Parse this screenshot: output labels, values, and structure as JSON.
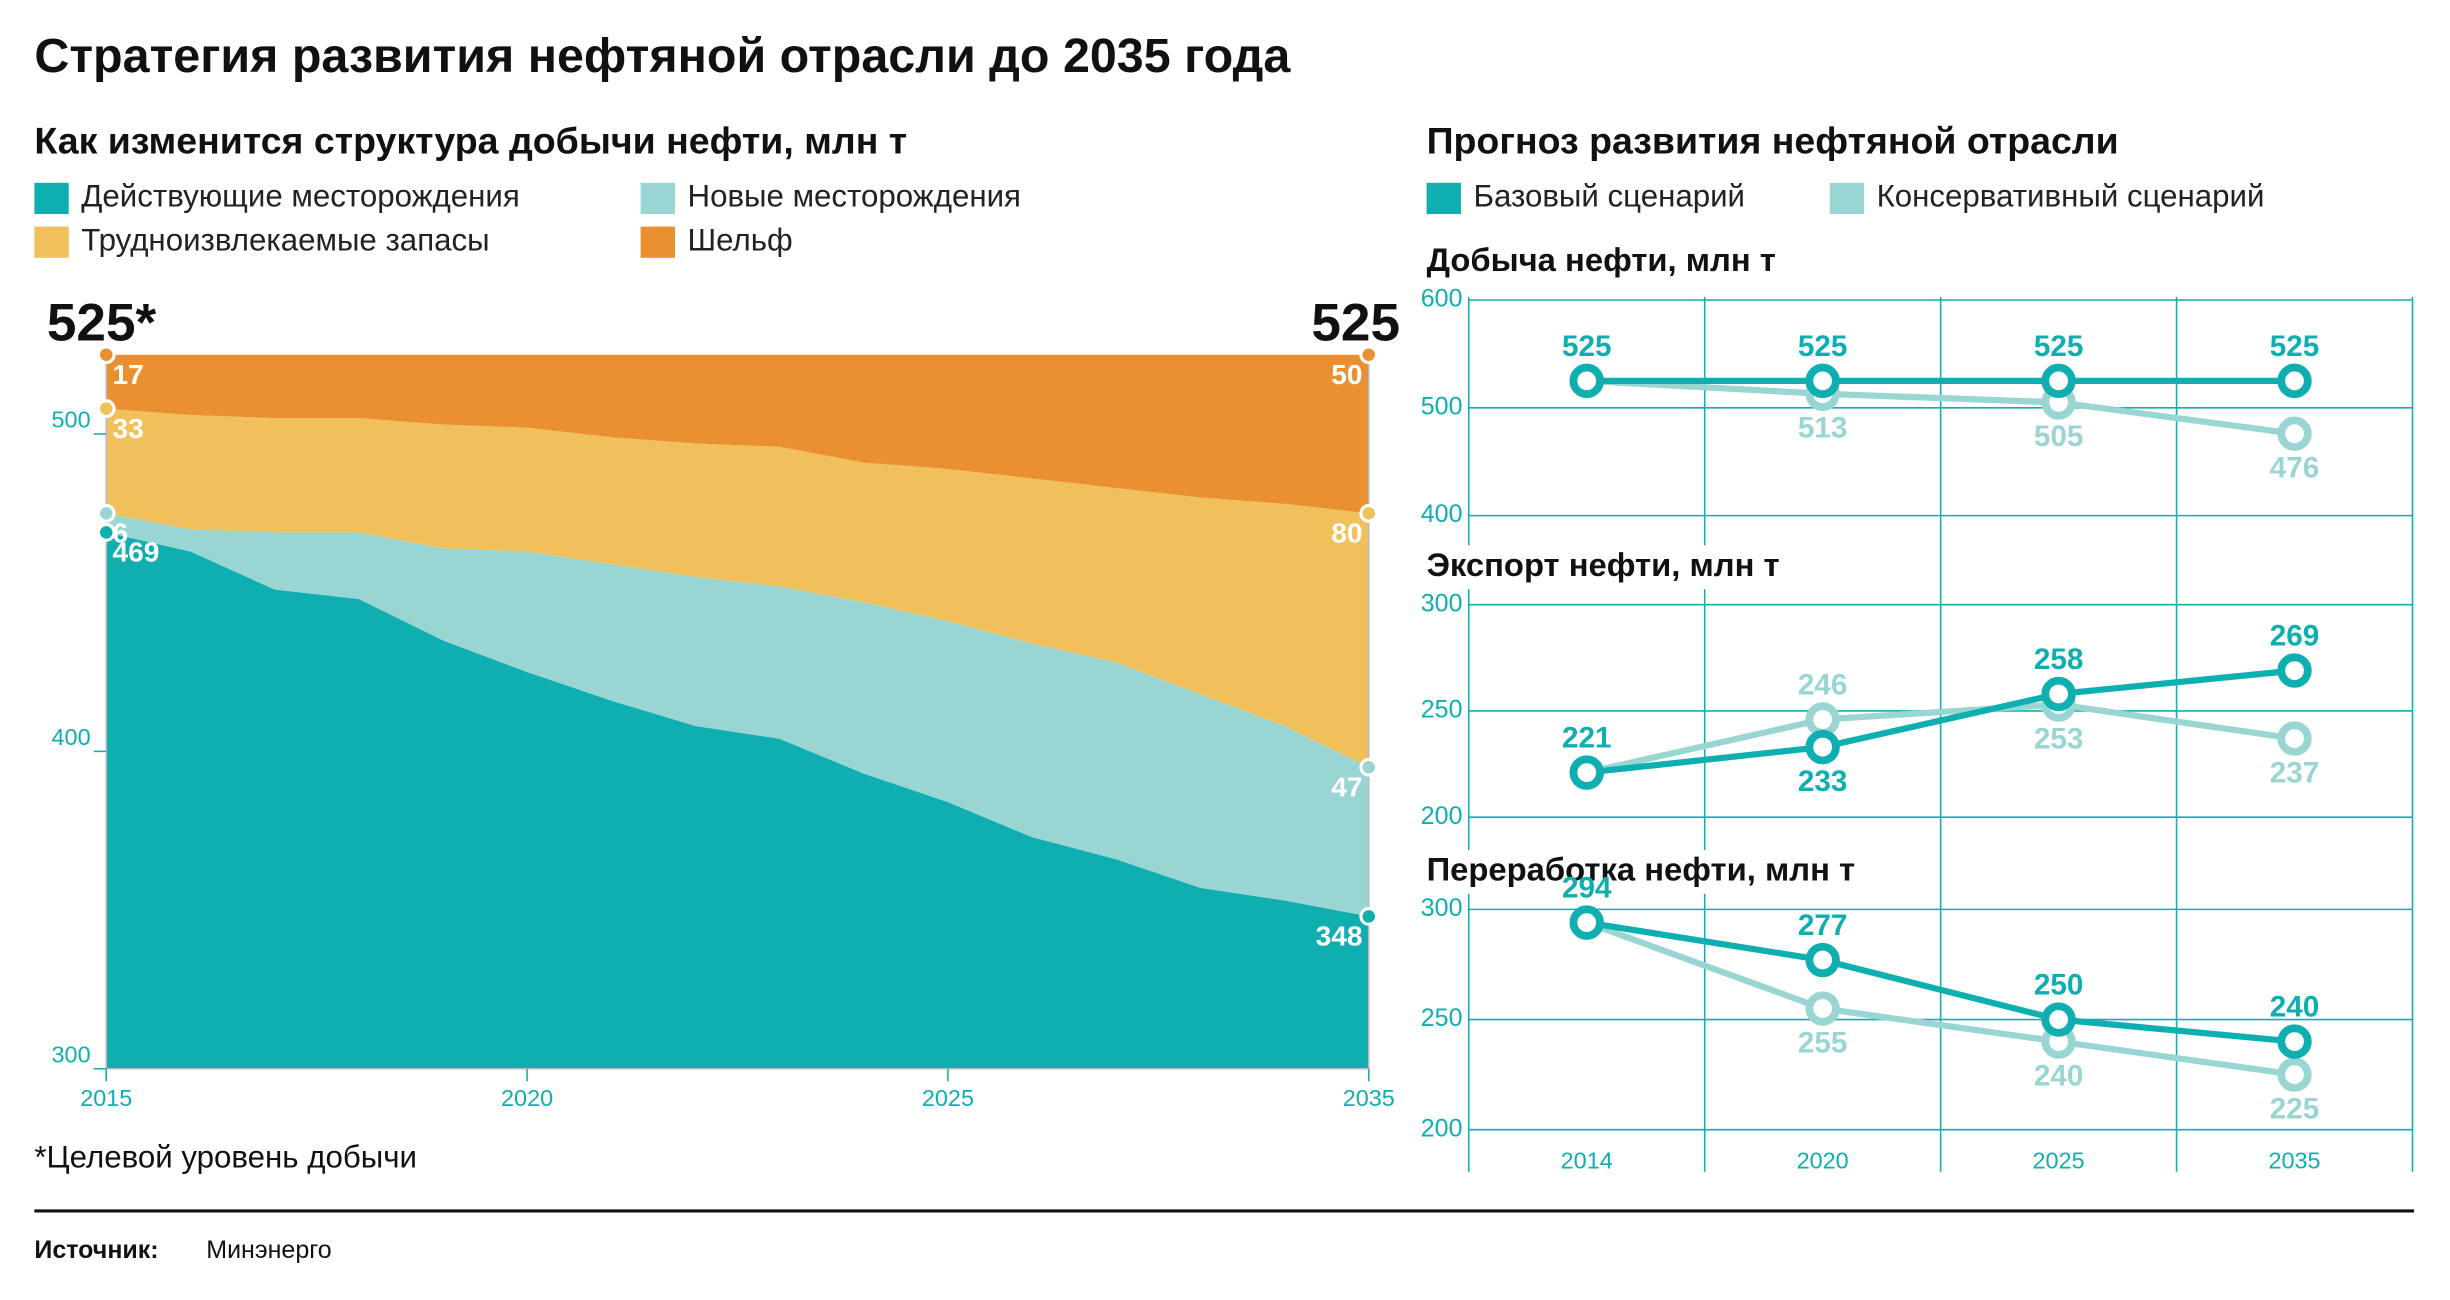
{
  "title": "Стратегия развития нефтяной отрасли до 2035 года",
  "source_label": "Источник:",
  "source": "Минэнерго",
  "chart_data": [
    {
      "type": "area",
      "title": "Как изменится структура добычи нефти, млн т",
      "categories": [
        "2015",
        null,
        null,
        null,
        null,
        "2020",
        null,
        null,
        null,
        null,
        "2025",
        null,
        null,
        null,
        null,
        "2035"
      ],
      "series": [
        {
          "name": "Действующие месторождения",
          "color": "#0fafb1",
          "values": [
            469,
            463,
            451,
            448,
            435,
            425,
            416,
            408,
            404,
            393,
            384,
            373,
            366,
            357,
            353,
            348
          ]
        },
        {
          "name": "Новые месторождения",
          "color": "#99d5d3",
          "values": [
            6,
            7,
            18,
            21,
            29,
            38,
            43,
            47,
            48,
            54,
            57,
            61,
            62,
            61,
            55,
            47
          ]
        },
        {
          "name": "Трудноизвлекаемые запасы",
          "color": "#f0c05a",
          "values": [
            33,
            36,
            36,
            36,
            39,
            39,
            40,
            42,
            44,
            44,
            48,
            52,
            55,
            62,
            70,
            80
          ]
        },
        {
          "name": "Шельф",
          "color": "#ea9030",
          "values": [
            17,
            19,
            20,
            20,
            22,
            23,
            26,
            28,
            29,
            34,
            36,
            39,
            42,
            45,
            47,
            50
          ]
        }
      ],
      "ylim": [
        300,
        525
      ],
      "yticks": [
        300,
        400,
        500
      ],
      "annotations": [
        "525*",
        "525"
      ],
      "note": "*Целевой уровень добычи"
    },
    {
      "type": "line",
      "group_title": "Прогноз развития нефтяной отрасли",
      "title": "Добыча нефти, млн т",
      "categories": [
        "2014",
        "2020",
        "2025",
        "2035"
      ],
      "series": [
        {
          "name": "Базовый сценарий",
          "color": "#0fafb1",
          "values": [
            525,
            525,
            525,
            525
          ]
        },
        {
          "name": "Консервативный сценарий",
          "color": "#99d5d3",
          "values": [
            525,
            513,
            505,
            476
          ]
        }
      ],
      "ylim": [
        400,
        600
      ],
      "yticks": [
        400,
        500,
        600
      ],
      "grid": true
    },
    {
      "type": "line",
      "title": "Экспорт нефти, млн т",
      "categories": [
        "2014",
        "2020",
        "2025",
        "2035"
      ],
      "series": [
        {
          "name": "Базовый сценарий",
          "color": "#0fafb1",
          "values": [
            221,
            233,
            258,
            269
          ]
        },
        {
          "name": "Консервативный сценарий",
          "color": "#99d5d3",
          "values": [
            221,
            246,
            253,
            237
          ]
        }
      ],
      "ylim": [
        200,
        300
      ],
      "yticks": [
        200,
        250,
        300
      ],
      "grid": true
    },
    {
      "type": "line",
      "title": "Переработка нефти, млн т",
      "categories": [
        "2014",
        "2020",
        "2025",
        "2035"
      ],
      "series": [
        {
          "name": "Базовый сценарий",
          "color": "#0fafb1",
          "values": [
            294,
            277,
            250,
            240
          ]
        },
        {
          "name": "Консервативный сценарий",
          "color": "#99d5d3",
          "values": [
            294,
            255,
            240,
            225
          ]
        }
      ],
      "ylim": [
        200,
        300
      ],
      "yticks": [
        200,
        250,
        300
      ],
      "grid": true
    }
  ]
}
